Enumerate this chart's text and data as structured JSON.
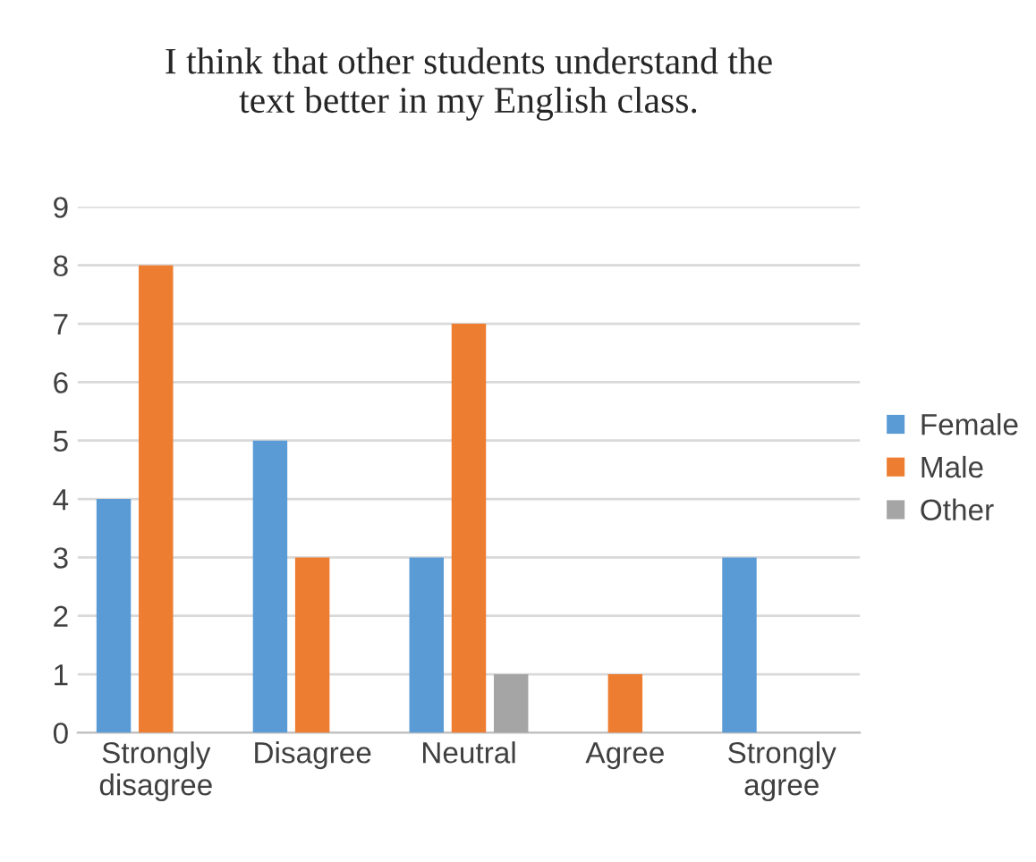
{
  "chart_data": {
    "type": "bar",
    "title": "I think that other students understand the\ntext better in my English class.",
    "categories": [
      "Strongly\ndisagree",
      "Disagree",
      "Neutral",
      "Agree",
      "Strongly\nagree"
    ],
    "series": [
      {
        "name": "Female",
        "color": "#5b9bd5",
        "values": [
          4,
          5,
          3,
          null,
          3
        ]
      },
      {
        "name": "Male",
        "color": "#ed7d31",
        "values": [
          8,
          3,
          7,
          1,
          null
        ]
      },
      {
        "name": "Other",
        "color": "#a5a5a5",
        "values": [
          null,
          null,
          1,
          null,
          null
        ]
      }
    ],
    "ylim": [
      0,
      9
    ],
    "yticks": [
      0,
      1,
      2,
      3,
      4,
      5,
      6,
      7,
      8,
      9
    ],
    "grid": "y",
    "legend": "right"
  }
}
